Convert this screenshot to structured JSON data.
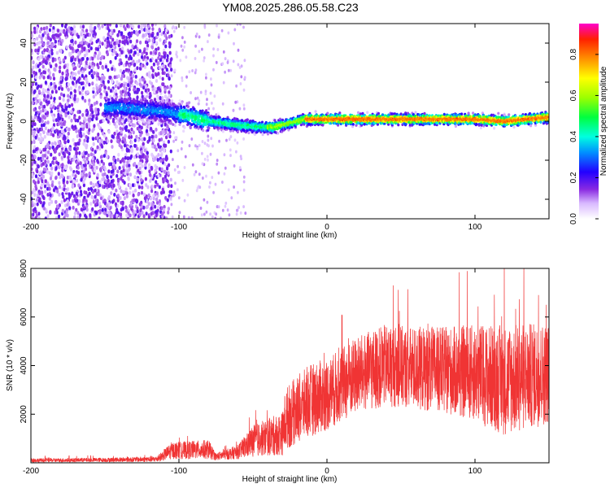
{
  "title": "YM08.2025.286.05.58.C23",
  "chart_data": [
    {
      "type": "heatmap",
      "name": "spectrogram",
      "xlabel": "Height of straight line (km)",
      "ylabel": "Frequency (Hz)",
      "xlim": [
        -200,
        150
      ],
      "ylim": [
        -50,
        50
      ],
      "xticks": [
        -200,
        -100,
        0,
        100
      ],
      "yticks": [
        -40,
        -20,
        0,
        20,
        40
      ],
      "description_ridge": [
        {
          "x": -140,
          "f": 7
        },
        {
          "x": -110,
          "f": 5
        },
        {
          "x": -95,
          "f": 3
        },
        {
          "x": -80,
          "f": 0
        },
        {
          "x": -60,
          "f": -2
        },
        {
          "x": -45,
          "f": -3
        },
        {
          "x": -35,
          "f": -3
        },
        {
          "x": -25,
          "f": -1
        },
        {
          "x": -15,
          "f": 1
        },
        {
          "x": 0,
          "f": 1
        },
        {
          "x": 50,
          "f": 1
        },
        {
          "x": 100,
          "f": 1
        },
        {
          "x": 120,
          "f": 0
        },
        {
          "x": 150,
          "f": 2
        }
      ],
      "colorbar": {
        "label": "Normalized spectral amplitude",
        "ticks": [
          0.0,
          0.2,
          0.4,
          0.6,
          0.8
        ],
        "range": [
          0,
          0.95
        ]
      }
    },
    {
      "type": "line",
      "name": "snr",
      "xlabel": "Height of straight line (km)",
      "ylabel": "SNR (10 * v/v)",
      "xlim": [
        -200,
        150
      ],
      "ylim": [
        0,
        8000
      ],
      "xticks": [
        -200,
        -100,
        0,
        100
      ],
      "yticks": [
        2000,
        4000,
        6000,
        8000
      ],
      "color": "#f03434",
      "envelope": [
        {
          "x": -200,
          "mean": 100,
          "amp": 80
        },
        {
          "x": -150,
          "mean": 120,
          "amp": 90
        },
        {
          "x": -115,
          "mean": 150,
          "amp": 120
        },
        {
          "x": -105,
          "mean": 500,
          "amp": 350
        },
        {
          "x": -80,
          "mean": 550,
          "amp": 400
        },
        {
          "x": -75,
          "mean": 250,
          "amp": 150
        },
        {
          "x": -60,
          "mean": 450,
          "amp": 300
        },
        {
          "x": -50,
          "mean": 900,
          "amp": 650
        },
        {
          "x": -30,
          "mean": 1200,
          "amp": 900
        },
        {
          "x": -28,
          "mean": 1800,
          "amp": 1300
        },
        {
          "x": -20,
          "mean": 2200,
          "amp": 1400
        },
        {
          "x": -10,
          "mean": 2600,
          "amp": 1500
        },
        {
          "x": 0,
          "mean": 2800,
          "amp": 1500
        },
        {
          "x": 20,
          "mean": 3600,
          "amp": 1600
        },
        {
          "x": 40,
          "mean": 4000,
          "amp": 1700
        },
        {
          "x": 60,
          "mean": 3900,
          "amp": 1700
        },
        {
          "x": 80,
          "mean": 3800,
          "amp": 1800
        },
        {
          "x": 100,
          "mean": 3700,
          "amp": 2000
        },
        {
          "x": 120,
          "mean": 3400,
          "amp": 2300
        },
        {
          "x": 150,
          "mean": 3700,
          "amp": 2100
        }
      ]
    }
  ]
}
